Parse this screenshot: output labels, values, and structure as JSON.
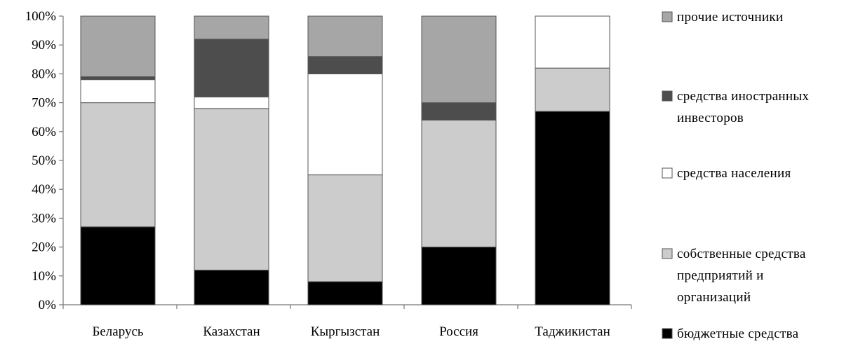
{
  "chart_data": {
    "type": "bar",
    "stacked": true,
    "percent": true,
    "categories": [
      "Беларусь",
      "Казахстан",
      "Кыргызстан",
      "Россия",
      "Таджикистан"
    ],
    "series": [
      {
        "name": "бюджетные средства",
        "color": "#000000",
        "values": [
          27,
          12,
          8,
          20,
          67
        ]
      },
      {
        "name": "собственные средства предприятий и организаций",
        "color": "#cccccc",
        "values": [
          43,
          56,
          37,
          44,
          15
        ]
      },
      {
        "name": "средства населения",
        "color": "#ffffff",
        "values": [
          8,
          4,
          35,
          0,
          18
        ]
      },
      {
        "name": "средства иностранных инвесторов",
        "color": "#4d4d4d",
        "values": [
          1,
          20,
          6,
          6,
          0
        ]
      },
      {
        "name": "прочие источники",
        "color": "#a6a6a6",
        "values": [
          21,
          8,
          14,
          30,
          0
        ]
      }
    ],
    "legend_order": [
      4,
      3,
      2,
      1,
      0
    ],
    "legend_lines": [
      [
        "прочие источники"
      ],
      [
        "средства иностранных",
        "инвесторов"
      ],
      [
        "средства населения"
      ],
      [
        "собственные средства",
        "предприятий и",
        "организаций"
      ],
      [
        "бюджетные средства"
      ]
    ],
    "y_ticks": [
      "0%",
      "10%",
      "20%",
      "30%",
      "40%",
      "50%",
      "60%",
      "70%",
      "80%",
      "90%",
      "100%"
    ],
    "ylim": [
      0,
      100
    ],
    "grid": false,
    "legend_position": "right"
  }
}
